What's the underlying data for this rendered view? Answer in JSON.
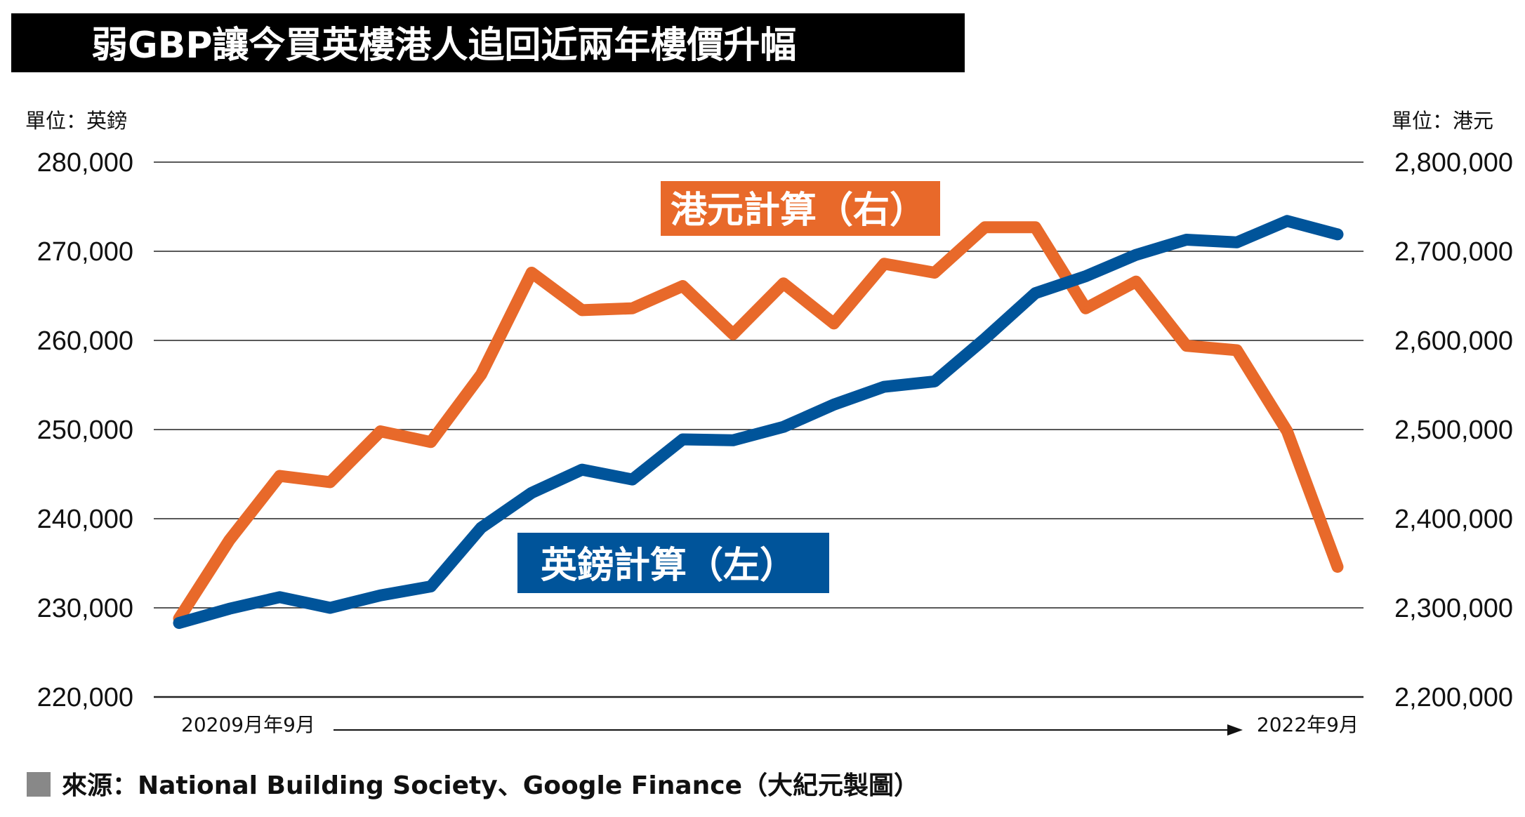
{
  "chart_data": {
    "type": "line",
    "title": "弱GBP讓今買英樓港人追回近兩年樓價升幅",
    "left_unit": "單位：英鎊",
    "right_unit": "單位：港元",
    "x_start_label": "20209月年9月",
    "x_end_label": "2022年9月",
    "source": "來源：National Building Society、Google Finance（大紀元製圖）",
    "left_axis": {
      "ylim": [
        220000,
        280000
      ],
      "ticks": [
        "280,000",
        "270,000",
        "260,000",
        "250,000",
        "240,000",
        "230,000",
        "220,000"
      ]
    },
    "right_axis": {
      "ylim": [
        2200000,
        2800000
      ],
      "ticks": [
        "2,800,000",
        "2,700,000",
        "2,600,000",
        "2,500,000",
        "2,400,000",
        "2,300,000",
        "2,200,000"
      ]
    },
    "grid": true,
    "series": [
      {
        "name": "英鎊計算（左）",
        "axis": "left",
        "color": "#00549a",
        "values": [
          228300,
          229900,
          231200,
          230000,
          231400,
          232400,
          239000,
          242900,
          245500,
          244400,
          248900,
          248800,
          250300,
          252800,
          254800,
          255400,
          260200,
          265300,
          267200,
          269600,
          271300,
          271000,
          273400,
          271900
        ]
      },
      {
        "name": "港元計算（右）",
        "axis": "right",
        "color": "#e8692a",
        "values": [
          2288000,
          2376000,
          2448000,
          2441000,
          2498000,
          2486000,
          2562000,
          2676000,
          2634000,
          2636000,
          2661000,
          2607000,
          2664000,
          2619000,
          2686000,
          2676000,
          2727000,
          2727000,
          2636000,
          2666000,
          2594000,
          2589000,
          2498000,
          2346000
        ]
      }
    ]
  }
}
